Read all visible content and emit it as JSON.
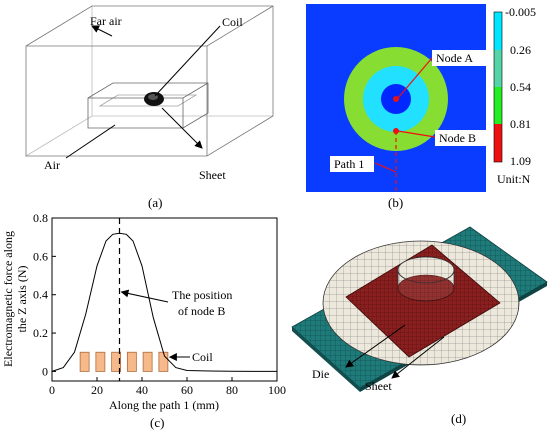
{
  "panel_a": {
    "caption": "(a)",
    "labels": {
      "far_air": "Far air",
      "coil": "Coil",
      "air": "Air",
      "sheet": "Sheet"
    }
  },
  "panel_b": {
    "caption": "(b)",
    "labels": {
      "node_a": "Node A",
      "node_b": "Node B",
      "path_1": "Path 1"
    },
    "legend": {
      "ticks": [
        "-0.005",
        "0.26",
        "0.54",
        "0.81",
        "1.09"
      ],
      "unit": "Unit:N",
      "colors": [
        "#00e6ff",
        "#55d4a8",
        "#22ee22",
        "#ee1111"
      ]
    },
    "colors": {
      "background": "#0a3cff",
      "ring_outer": "#88dd33",
      "ring_inner": "#22e0ff",
      "center": "#0028ff",
      "path_line": "#ee1111"
    }
  },
  "panel_c": {
    "caption": "(c)",
    "annotations": {
      "node_b_position": [
        "The position",
        "of node B"
      ],
      "coil": "Coil"
    },
    "coil_color": "#f6b98a",
    "chart_data": {
      "type": "line",
      "xlabel": "Along the path 1 (mm)",
      "ylabel": [
        "Electromagnetic force along",
        "the Z axis (N)"
      ],
      "xlim": [
        0,
        100
      ],
      "ylim": [
        -0.05,
        0.8
      ],
      "xticks": [
        0,
        20,
        40,
        60,
        80,
        100
      ],
      "yticks": [
        0,
        0.2,
        0.4,
        0.6,
        0.8
      ],
      "x": [
        0,
        5,
        10,
        15,
        20,
        24,
        27,
        30,
        33,
        36,
        40,
        45,
        50,
        55,
        60,
        70,
        80,
        90,
        100
      ],
      "y": [
        0.0,
        0.02,
        0.1,
        0.3,
        0.55,
        0.68,
        0.715,
        0.72,
        0.715,
        0.68,
        0.55,
        0.28,
        0.08,
        0.02,
        0.005,
        0.002,
        0.001,
        0.0,
        0.0
      ],
      "marker_x": 30,
      "coil_blocks_x": [
        [
          12.5,
          16.5
        ],
        [
          19.5,
          23.5
        ],
        [
          26.5,
          30.5
        ],
        [
          33.5,
          37.5
        ],
        [
          40.5,
          44.5
        ],
        [
          47.5,
          51.5
        ]
      ],
      "coil_block_height": 0.1
    }
  },
  "panel_d": {
    "caption": "(d)",
    "labels": {
      "die": "Die",
      "sheet": "Sheet"
    },
    "colors": {
      "base": "#1f7a7a",
      "die": "#ece8dc",
      "sheet": "#8a1f1f",
      "mesh": "#222222"
    }
  }
}
